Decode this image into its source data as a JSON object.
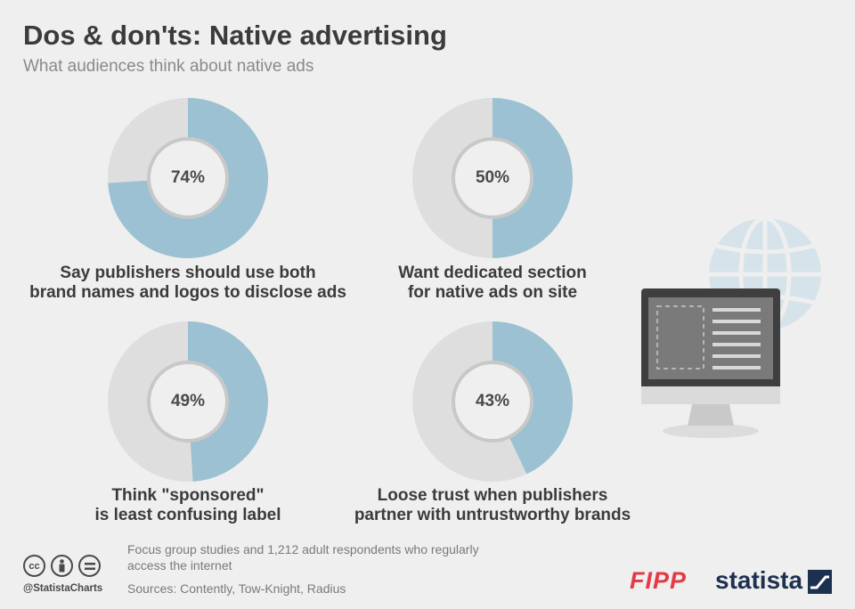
{
  "title": "Dos & don'ts: Native advertising",
  "subtitle": "What audiences think about native ads",
  "chart_data": {
    "type": "pie",
    "colors": {
      "share": "#9bc1d2",
      "remainder": "#dedede",
      "inner_ring": "#c8c8c8",
      "center": "#efefef"
    },
    "items": [
      {
        "value": 74,
        "value_label": "74%",
        "label_lines": [
          "Say publishers should use both",
          "brand names and logos to disclose ads"
        ]
      },
      {
        "value": 50,
        "value_label": "50%",
        "label_lines": [
          "Want dedicated section",
          "for native ads on site"
        ]
      },
      {
        "value": 49,
        "value_label": "49%",
        "label_lines": [
          "Think \"sponsored\"",
          "is least confusing label"
        ]
      },
      {
        "value": 43,
        "value_label": "43%",
        "label_lines": [
          "Loose trust when publishers",
          "partner with untrustworthy brands"
        ]
      }
    ]
  },
  "illustration": {
    "icons": [
      "globe-icon",
      "monitor-icon"
    ]
  },
  "footer": {
    "license_icons": [
      "cc",
      "by",
      "nd"
    ],
    "handle": "@StatistaCharts",
    "note": "Focus group studies and 1,212 adult respondents who regularly access the internet",
    "sources": "Sources: Contently, Tow-Knight, Radius",
    "partner_logo": "FIPP",
    "brand_logo": "statista"
  }
}
